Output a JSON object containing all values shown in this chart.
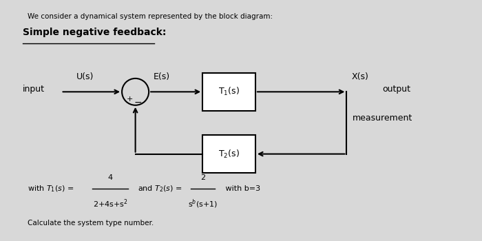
{
  "background_color": "#d8d8d8",
  "title_text": "We consider a dynamical system represented by the block diagram:",
  "subtitle_text": "Simple negative feedback:",
  "input_label": "input",
  "us_label": "U(s)",
  "es_label": "E(s)",
  "t1_label": "T$_1$(s)",
  "t2_label": "T$_2$(s)",
  "xs_label": "X(s)",
  "output_label": "output",
  "measurement_label": "measurement",
  "plus_label": "+",
  "minus_label": "−",
  "t1_numerator": "4",
  "t1_denominator": "2+4s+s$^2$",
  "t2_numerator": "2",
  "t2_denominator": "s$^b$(s+1)",
  "with_b": " with b=3",
  "calculate_text": "Calculate the system type number.",
  "box_color": "#ffffff",
  "box_edgecolor": "#000000",
  "arrow_color": "#000000",
  "line_color": "#000000",
  "text_color": "#000000"
}
